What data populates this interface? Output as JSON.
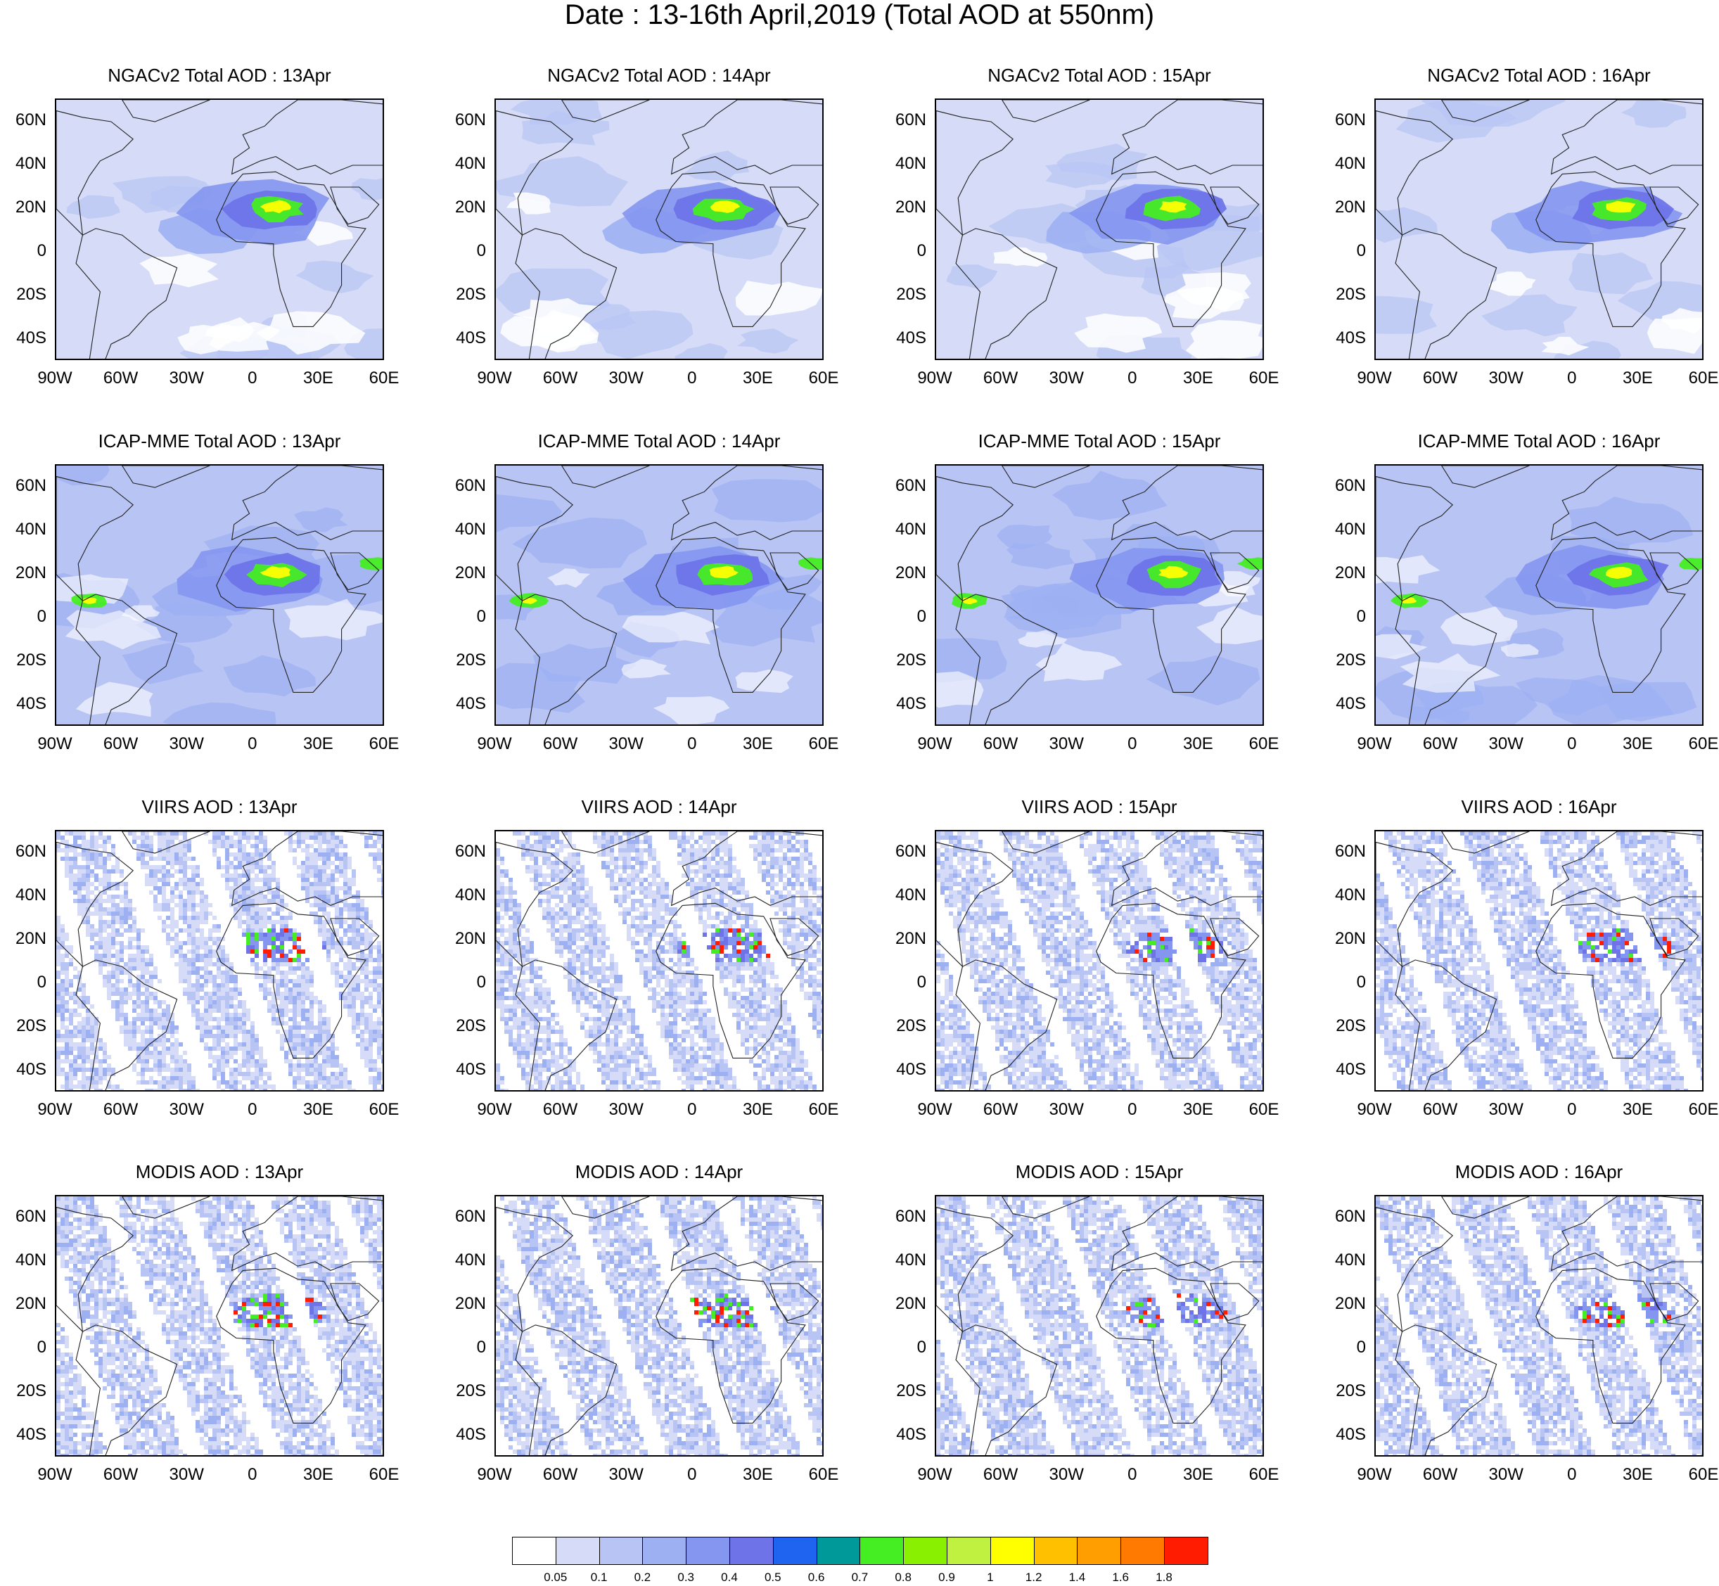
{
  "title": "Date : 13-16th April,2019 (Total AOD at 550nm)",
  "rows": [
    {
      "product": "NGACv2 Total AOD",
      "kind": "model",
      "variant": 0,
      "panels": [
        "NGACv2 Total AOD : 13Apr",
        "NGACv2 Total AOD : 14Apr",
        "NGACv2 Total AOD : 15Apr",
        "NGACv2 Total AOD : 16Apr"
      ]
    },
    {
      "product": "ICAP-MME Total AOD",
      "kind": "model",
      "variant": 1,
      "panels": [
        "ICAP-MME Total AOD : 13Apr",
        "ICAP-MME Total AOD : 14Apr",
        "ICAP-MME Total AOD : 15Apr",
        "ICAP-MME Total AOD : 16Apr"
      ]
    },
    {
      "product": "VIIRS AOD",
      "kind": "satellite",
      "variant": 2,
      "panels": [
        "VIIRS AOD : 13Apr",
        "VIIRS AOD : 14Apr",
        "VIIRS AOD : 15Apr",
        "VIIRS AOD : 16Apr"
      ]
    },
    {
      "product": "MODIS AOD",
      "kind": "satellite",
      "variant": 3,
      "panels": [
        "MODIS AOD : 13Apr",
        "MODIS AOD : 14Apr",
        "MODIS AOD : 15Apr",
        "MODIS AOD : 16Apr"
      ]
    }
  ],
  "lat_ticks": [
    "60N",
    "40N",
    "20N",
    "0",
    "20S",
    "40S"
  ],
  "lat_values": [
    60,
    40,
    20,
    0,
    -20,
    -40
  ],
  "lon_ticks": [
    "90W",
    "60W",
    "30W",
    "0",
    "30E",
    "60E"
  ],
  "lon_values": [
    -90,
    -60,
    -30,
    0,
    30,
    60
  ],
  "lat_range": [
    -50,
    70
  ],
  "lon_range": [
    -90,
    60
  ],
  "colorbar": {
    "colors": [
      "#ffffff",
      "#d6dcf8",
      "#b8c4f4",
      "#9db0f2",
      "#8496f0",
      "#6e74e8",
      "#1e64f0",
      "#009999",
      "#44ee22",
      "#88f000",
      "#c0f040",
      "#ffff00",
      "#ffc000",
      "#ff9e00",
      "#ff7a00",
      "#ff1c00"
    ],
    "labels": [
      "0.05",
      "0.1",
      "0.2",
      "0.3",
      "0.4",
      "0.5",
      "0.6",
      "0.7",
      "0.8",
      "0.9",
      "1",
      "1.2",
      "1.4",
      "1.6",
      "1.8"
    ]
  },
  "background_color": "#ffffff"
}
